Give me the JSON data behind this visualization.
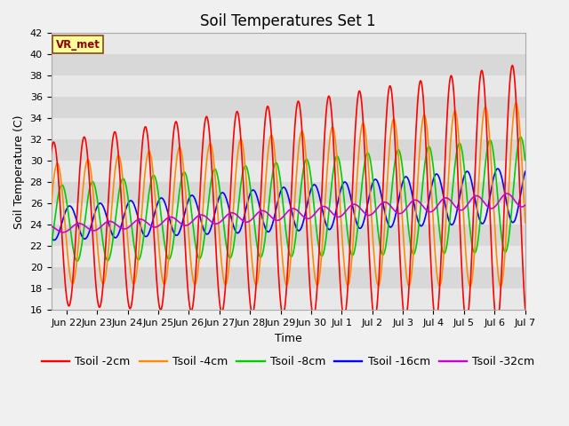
{
  "title": "Soil Temperatures Set 1",
  "xlabel": "Time",
  "ylabel": "Soil Temperature (C)",
  "ylim": [
    16,
    42
  ],
  "yticks": [
    16,
    18,
    20,
    22,
    24,
    26,
    28,
    30,
    32,
    34,
    36,
    38,
    40,
    42
  ],
  "colors": {
    "tsoil_2cm": "#ff0000",
    "tsoil_4cm": "#ff8c00",
    "tsoil_8cm": "#00cc00",
    "tsoil_16cm": "#0000ff",
    "tsoil_32cm": "#cc00cc"
  },
  "legend_labels": [
    "Tsoil -2cm",
    "Tsoil -4cm",
    "Tsoil -8cm",
    "Tsoil -16cm",
    "Tsoil -32cm"
  ],
  "vr_met_label": "VR_met",
  "background_color": "#f0f0f0",
  "plot_bg_color": "#d8d8d8",
  "stripe_color": "#e8e8e8",
  "title_fontsize": 12,
  "axis_label_fontsize": 9,
  "tick_fontsize": 8,
  "legend_fontsize": 9,
  "line_width": 1.2,
  "x_tick_labels": [
    "Jun 22",
    "Jun 23",
    "Jun 24",
    "Jun 25",
    "Jun 26",
    "Jun 27",
    "Jun 28",
    "Jun 29",
    "Jun 30",
    "Jul 1",
    "Jul 2",
    "Jul 3",
    "Jul 4",
    "Jul 5",
    "Jul 6",
    "Jul 7"
  ],
  "x_tick_positions": [
    1,
    2,
    3,
    4,
    5,
    6,
    7,
    8,
    9,
    10,
    11,
    12,
    13,
    14,
    15,
    16
  ],
  "xlim": [
    0.5,
    16.0
  ],
  "n_points": 768
}
